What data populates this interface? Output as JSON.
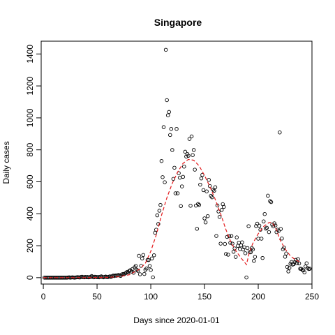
{
  "chart_data": {
    "type": "scatter",
    "title": "Singapore",
    "xlabel": "Days since 2020-01-01",
    "ylabel": "Daily cases",
    "xlim": [
      -2,
      250
    ],
    "ylim": [
      -40,
      1480
    ],
    "x_ticks": [
      0,
      50,
      100,
      150,
      200,
      250
    ],
    "y_ticks": [
      0,
      200,
      400,
      600,
      800,
      1000,
      1200,
      1400
    ],
    "grid": false,
    "legend": "none",
    "colors": {
      "points": "#000000",
      "fit": "#e31a1c"
    },
    "series": [
      {
        "type": "points",
        "points": [
          [
            1,
            0
          ],
          [
            2,
            0
          ],
          [
            3,
            0
          ],
          [
            4,
            0
          ],
          [
            5,
            0
          ],
          [
            6,
            0
          ],
          [
            7,
            0
          ],
          [
            8,
            0
          ],
          [
            9,
            0
          ],
          [
            10,
            0
          ],
          [
            11,
            0
          ],
          [
            12,
            0
          ],
          [
            13,
            0
          ],
          [
            14,
            0
          ],
          [
            15,
            0
          ],
          [
            16,
            0
          ],
          [
            17,
            0
          ],
          [
            18,
            0
          ],
          [
            19,
            0
          ],
          [
            20,
            0
          ],
          [
            21,
            0
          ],
          [
            22,
            0
          ],
          [
            23,
            1
          ],
          [
            24,
            2
          ],
          [
            25,
            0
          ],
          [
            26,
            1
          ],
          [
            27,
            2
          ],
          [
            28,
            1
          ],
          [
            29,
            0
          ],
          [
            30,
            1
          ],
          [
            31,
            2
          ],
          [
            32,
            3
          ],
          [
            33,
            2
          ],
          [
            34,
            1
          ],
          [
            35,
            4
          ],
          [
            36,
            6
          ],
          [
            37,
            3
          ],
          [
            38,
            2
          ],
          [
            39,
            5
          ],
          [
            40,
            3
          ],
          [
            41,
            4
          ],
          [
            42,
            2
          ],
          [
            43,
            3
          ],
          [
            44,
            5
          ],
          [
            45,
            10
          ],
          [
            46,
            4
          ],
          [
            47,
            2
          ],
          [
            48,
            6
          ],
          [
            49,
            5
          ],
          [
            50,
            3
          ],
          [
            51,
            4
          ],
          [
            52,
            2
          ],
          [
            53,
            6
          ],
          [
            54,
            8
          ],
          [
            55,
            4
          ],
          [
            56,
            2
          ],
          [
            57,
            5
          ],
          [
            58,
            7
          ],
          [
            59,
            4
          ],
          [
            60,
            3
          ],
          [
            61,
            6
          ],
          [
            62,
            8
          ],
          [
            63,
            5
          ],
          [
            64,
            9
          ],
          [
            65,
            13
          ],
          [
            66,
            10
          ],
          [
            67,
            14
          ],
          [
            68,
            12
          ],
          [
            69,
            15
          ],
          [
            70,
            17
          ],
          [
            71,
            13
          ],
          [
            72,
            11
          ],
          [
            73,
            20
          ],
          [
            74,
            23
          ],
          [
            75,
            21
          ],
          [
            76,
            26
          ],
          [
            77,
            30
          ],
          [
            78,
            36
          ],
          [
            79,
            33
          ],
          [
            80,
            42
          ],
          [
            81,
            47
          ],
          [
            82,
            38
          ],
          [
            83,
            54
          ],
          [
            84,
            31
          ],
          [
            85,
            65
          ],
          [
            86,
            73
          ],
          [
            87,
            49
          ],
          [
            88,
            43
          ],
          [
            89,
            137
          ],
          [
            90,
            21
          ],
          [
            91,
            74
          ],
          [
            92,
            120
          ],
          [
            93,
            142
          ],
          [
            94,
            23
          ],
          [
            95,
            49
          ],
          [
            96,
            57
          ],
          [
            97,
            111
          ],
          [
            98,
            110
          ],
          [
            99,
            73
          ],
          [
            100,
            48
          ],
          [
            101,
            120
          ],
          [
            102,
            2
          ],
          [
            103,
            140
          ],
          [
            104,
            281
          ],
          [
            105,
            300
          ],
          [
            106,
            390
          ],
          [
            107,
            336
          ],
          [
            108,
            419
          ],
          [
            109,
            455
          ],
          [
            110,
            730
          ],
          [
            111,
            629
          ],
          [
            112,
            942
          ],
          [
            113,
            597
          ],
          [
            114,
            1426
          ],
          [
            115,
            1111
          ],
          [
            116,
            1016
          ],
          [
            117,
            1037
          ],
          [
            118,
            893
          ],
          [
            119,
            931
          ],
          [
            120,
            799
          ],
          [
            121,
            618
          ],
          [
            122,
            688
          ],
          [
            123,
            528
          ],
          [
            124,
            931
          ],
          [
            125,
            528
          ],
          [
            126,
            654
          ],
          [
            127,
            626
          ],
          [
            128,
            448
          ],
          [
            129,
            571
          ],
          [
            130,
            631
          ],
          [
            131,
            695
          ],
          [
            132,
            788
          ],
          [
            133,
            758
          ],
          [
            134,
            774
          ],
          [
            135,
            763
          ],
          [
            136,
            868
          ],
          [
            137,
            450
          ],
          [
            138,
            884
          ],
          [
            139,
            767
          ],
          [
            140,
            799
          ],
          [
            141,
            676
          ],
          [
            142,
            451
          ],
          [
            143,
            306
          ],
          [
            144,
            461
          ],
          [
            145,
            455
          ],
          [
            146,
            582
          ],
          [
            147,
            621
          ],
          [
            148,
            643
          ],
          [
            149,
            548
          ],
          [
            150,
            371
          ],
          [
            151,
            346
          ],
          [
            152,
            540
          ],
          [
            153,
            385
          ],
          [
            154,
            612
          ],
          [
            155,
            573
          ],
          [
            156,
            512
          ],
          [
            157,
            503
          ],
          [
            158,
            550
          ],
          [
            159,
            544
          ],
          [
            160,
            566
          ],
          [
            161,
            261
          ],
          [
            162,
            452
          ],
          [
            163,
            414
          ],
          [
            164,
            380
          ],
          [
            165,
            213
          ],
          [
            166,
            424
          ],
          [
            167,
            460
          ],
          [
            168,
            443
          ],
          [
            169,
            211
          ],
          [
            170,
            148
          ],
          [
            171,
            255
          ],
          [
            172,
            144
          ],
          [
            173,
            259
          ],
          [
            174,
            218
          ],
          [
            175,
            261
          ],
          [
            176,
            213
          ],
          [
            177,
            162
          ],
          [
            178,
            183
          ],
          [
            179,
            130
          ],
          [
            180,
            252
          ],
          [
            181,
            199
          ],
          [
            182,
            219
          ],
          [
            183,
            179
          ],
          [
            184,
            202
          ],
          [
            185,
            221
          ],
          [
            186,
            176
          ],
          [
            187,
            190
          ],
          [
            188,
            153
          ],
          [
            189,
            1
          ],
          [
            190,
            185
          ],
          [
            191,
            322
          ],
          [
            192,
            160
          ],
          [
            193,
            159
          ],
          [
            194,
            185
          ],
          [
            195,
            177
          ],
          [
            196,
            105
          ],
          [
            197,
            130
          ],
          [
            198,
            323
          ],
          [
            199,
            338
          ],
          [
            200,
            244
          ],
          [
            201,
            325
          ],
          [
            202,
            300
          ],
          [
            203,
            244
          ],
          [
            204,
            123
          ],
          [
            205,
            352
          ],
          [
            206,
            398
          ],
          [
            207,
            307
          ],
          [
            208,
            312
          ],
          [
            209,
            513
          ],
          [
            210,
            285
          ],
          [
            211,
            479
          ],
          [
            212,
            473
          ],
          [
            213,
            332
          ],
          [
            214,
            321
          ],
          [
            215,
            340
          ],
          [
            216,
            327
          ],
          [
            217,
            285
          ],
          [
            218,
            300
          ],
          [
            219,
            293
          ],
          [
            220,
            909
          ],
          [
            221,
            305
          ],
          [
            222,
            245
          ],
          [
            223,
            178
          ],
          [
            224,
            188
          ],
          [
            225,
            131
          ],
          [
            226,
            151
          ],
          [
            227,
            67
          ],
          [
            228,
            39
          ],
          [
            229,
            61
          ],
          [
            230,
            87
          ],
          [
            231,
            98
          ],
          [
            232,
            82
          ],
          [
            233,
            85
          ],
          [
            234,
            98
          ],
          [
            235,
            111
          ],
          [
            236,
            90
          ],
          [
            237,
            116
          ],
          [
            238,
            89
          ],
          [
            239,
            56
          ],
          [
            240,
            55
          ],
          [
            241,
            49
          ],
          [
            242,
            46
          ],
          [
            243,
            33
          ],
          [
            244,
            70
          ],
          [
            245,
            90
          ],
          [
            246,
            60
          ],
          [
            247,
            54
          ],
          [
            248,
            56
          ]
        ]
      },
      {
        "type": "fit-line",
        "points": [
          [
            0,
            0
          ],
          [
            20,
            0
          ],
          [
            40,
            0
          ],
          [
            60,
            2
          ],
          [
            70,
            6
          ],
          [
            80,
            18
          ],
          [
            90,
            55
          ],
          [
            95,
            90
          ],
          [
            100,
            165
          ],
          [
            105,
            265
          ],
          [
            110,
            390
          ],
          [
            115,
            500
          ],
          [
            120,
            590
          ],
          [
            125,
            660
          ],
          [
            130,
            715
          ],
          [
            135,
            740
          ],
          [
            140,
            735
          ],
          [
            145,
            700
          ],
          [
            150,
            640
          ],
          [
            155,
            570
          ],
          [
            160,
            490
          ],
          [
            165,
            400
          ],
          [
            170,
            300
          ],
          [
            175,
            215
          ],
          [
            180,
            160
          ],
          [
            185,
            115
          ],
          [
            189,
            82
          ],
          [
            192,
            165
          ],
          [
            195,
            215
          ],
          [
            200,
            275
          ],
          [
            205,
            320
          ],
          [
            210,
            345
          ],
          [
            213,
            345
          ],
          [
            217,
            300
          ],
          [
            220,
            240
          ],
          [
            225,
            180
          ],
          [
            230,
            135
          ],
          [
            235,
            110
          ],
          [
            240,
            95
          ]
        ]
      }
    ]
  }
}
